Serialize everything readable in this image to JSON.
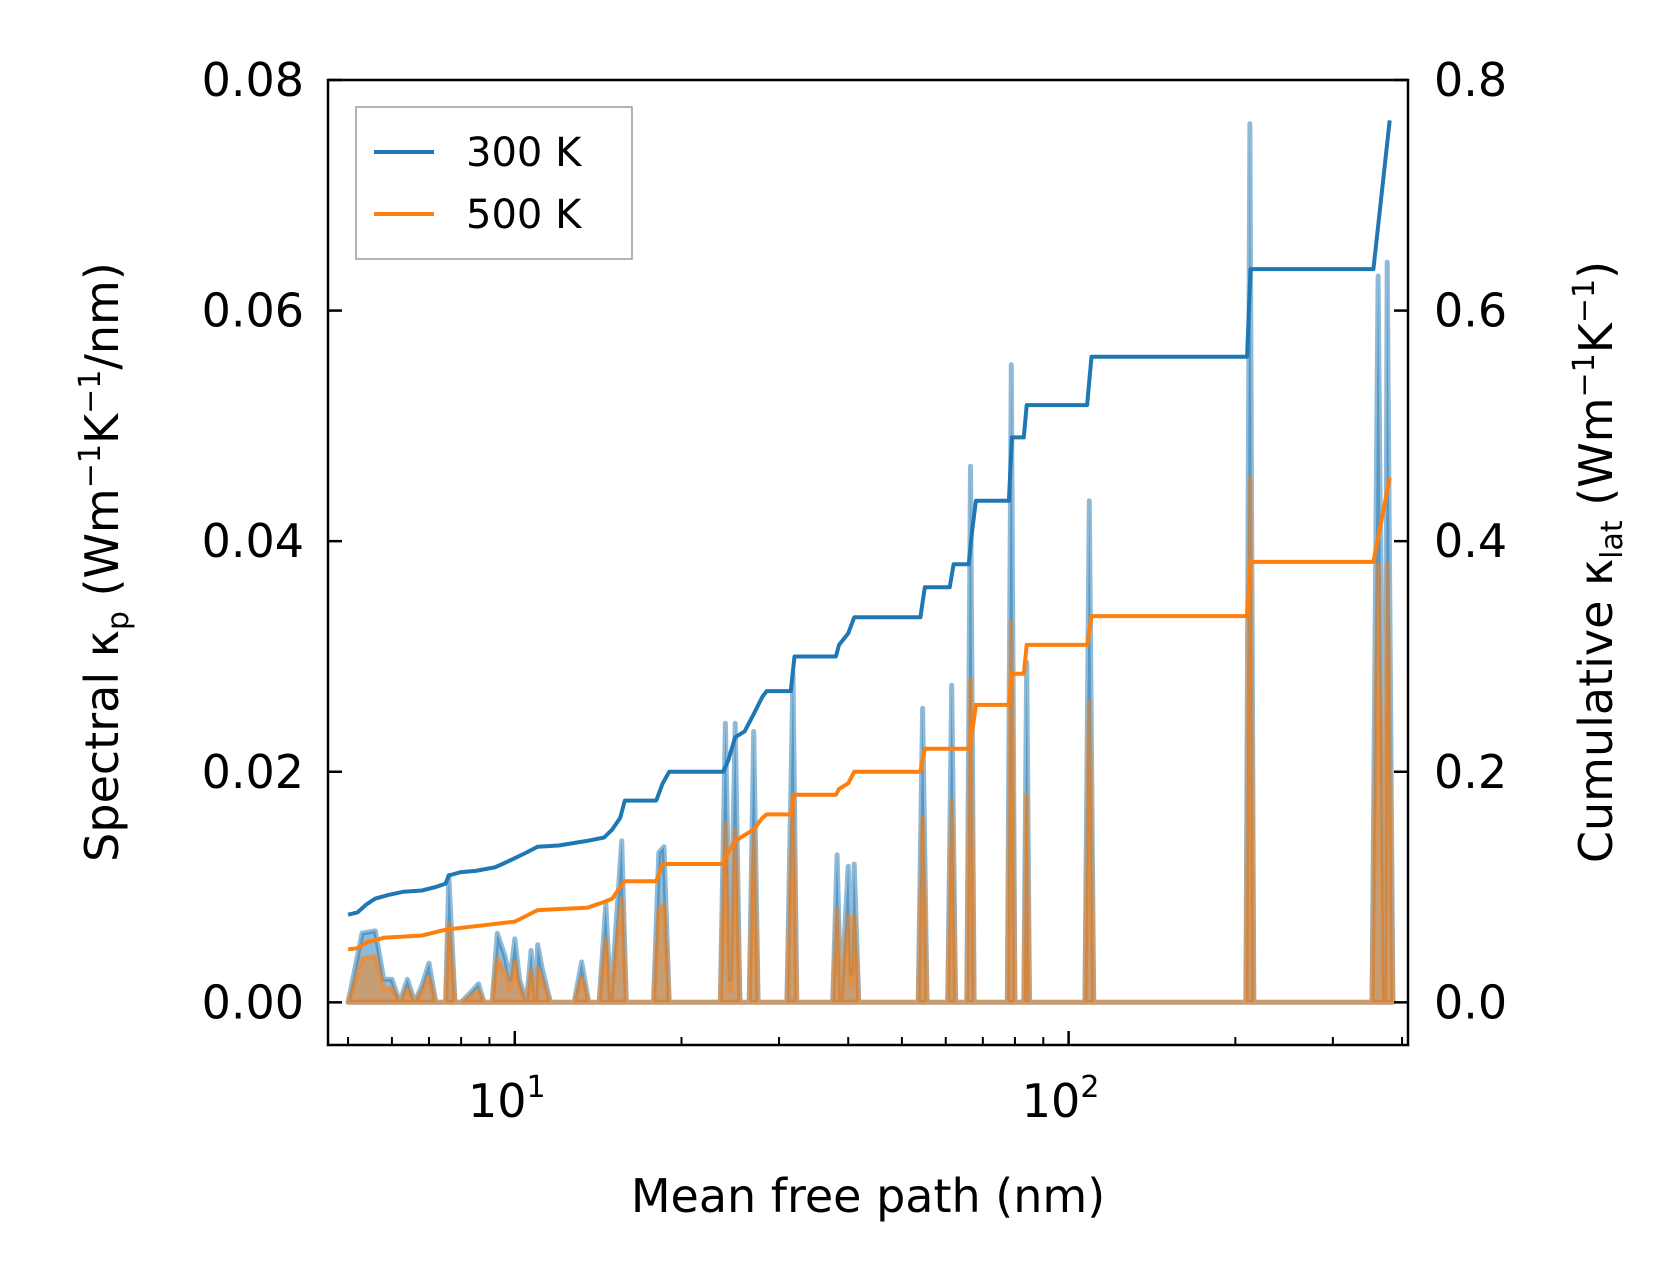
{
  "chart_data": {
    "type": "line",
    "xlabel": "Mean free path (nm)",
    "ylabel_left": {
      "pre": "Spectral κ",
      "sub": "p",
      "mid": " (Wm",
      "sup1": "−1",
      "k": "K",
      "sup2": "−1",
      "post": "/nm)"
    },
    "ylabel_right": {
      "pre": "Cumulative κ",
      "sub": "lat",
      "mid": " (Wm",
      "sup1": "−1",
      "k": "K",
      "sup2": "−1",
      "post": ")"
    },
    "x_scale": "log",
    "xlim": [
      4.6,
      410
    ],
    "ylim_left": [
      -0.0037,
      0.08
    ],
    "ylim_right": [
      -0.037,
      0.8
    ],
    "x_ticks": [
      {
        "base": "10",
        "exp": "1",
        "value": 10
      },
      {
        "base": "10",
        "exp": "2",
        "value": 100
      }
    ],
    "y_ticks_left": [
      {
        "label": "0.00",
        "value": 0.0
      },
      {
        "label": "0.02",
        "value": 0.02
      },
      {
        "label": "0.04",
        "value": 0.04
      },
      {
        "label": "0.06",
        "value": 0.06
      },
      {
        "label": "0.08",
        "value": 0.08
      }
    ],
    "y_ticks_right": [
      {
        "label": "0.0",
        "value": 0.0
      },
      {
        "label": "0.2",
        "value": 0.2
      },
      {
        "label": "0.4",
        "value": 0.4
      },
      {
        "label": "0.6",
        "value": 0.6
      },
      {
        "label": "0.8",
        "value": 0.8
      }
    ],
    "legend": {
      "location": "upper left",
      "entries": [
        {
          "label": "300 K",
          "color": "#1f77b4"
        },
        {
          "label": "500 K",
          "color": "#ff7f0e"
        }
      ]
    },
    "series": [
      {
        "name": "300 K",
        "color": "#1f77b4",
        "kind": "cumulative",
        "axis": "right",
        "points": [
          [
            5.0,
            0.076
          ],
          [
            5.2,
            0.078
          ],
          [
            5.4,
            0.085
          ],
          [
            5.6,
            0.09
          ],
          [
            5.9,
            0.093
          ],
          [
            6.3,
            0.096
          ],
          [
            6.8,
            0.097
          ],
          [
            7.2,
            0.1
          ],
          [
            7.5,
            0.103
          ],
          [
            7.6,
            0.11
          ],
          [
            8.0,
            0.113
          ],
          [
            8.5,
            0.114
          ],
          [
            9.2,
            0.117
          ],
          [
            9.5,
            0.12
          ],
          [
            10.0,
            0.125
          ],
          [
            10.5,
            0.13
          ],
          [
            11.0,
            0.135
          ],
          [
            12.0,
            0.136
          ],
          [
            13.5,
            0.14
          ],
          [
            14.5,
            0.143
          ],
          [
            15.0,
            0.15
          ],
          [
            15.5,
            0.16
          ],
          [
            15.8,
            0.175
          ],
          [
            18.0,
            0.175
          ],
          [
            18.5,
            0.19
          ],
          [
            19.0,
            0.2
          ],
          [
            23.8,
            0.2
          ],
          [
            24.3,
            0.21
          ],
          [
            25.0,
            0.23
          ],
          [
            26.0,
            0.235
          ],
          [
            27.0,
            0.25
          ],
          [
            28.0,
            0.265
          ],
          [
            28.5,
            0.27
          ],
          [
            31.5,
            0.27
          ],
          [
            32.0,
            0.3
          ],
          [
            38.0,
            0.3
          ],
          [
            38.5,
            0.31
          ],
          [
            40.0,
            0.32
          ],
          [
            41.0,
            0.334
          ],
          [
            54.0,
            0.334
          ],
          [
            55.0,
            0.36
          ],
          [
            61.0,
            0.36
          ],
          [
            62.0,
            0.38
          ],
          [
            66.0,
            0.38
          ],
          [
            67.0,
            0.41
          ],
          [
            68.0,
            0.435
          ],
          [
            78.0,
            0.435
          ],
          [
            79.0,
            0.49
          ],
          [
            83.0,
            0.49
          ],
          [
            84.0,
            0.518
          ],
          [
            108.0,
            0.518
          ],
          [
            110.0,
            0.56
          ],
          [
            210.0,
            0.56
          ],
          [
            213.0,
            0.636
          ],
          [
            355.0,
            0.636
          ],
          [
            380.0,
            0.765
          ]
        ]
      },
      {
        "name": "500 K",
        "color": "#ff7f0e",
        "kind": "cumulative",
        "axis": "right",
        "points": [
          [
            5.0,
            0.046
          ],
          [
            5.2,
            0.047
          ],
          [
            5.4,
            0.052
          ],
          [
            5.8,
            0.056
          ],
          [
            6.8,
            0.058
          ],
          [
            7.5,
            0.063
          ],
          [
            8.5,
            0.066
          ],
          [
            10.0,
            0.07
          ],
          [
            11.0,
            0.08
          ],
          [
            13.5,
            0.082
          ],
          [
            14.5,
            0.087
          ],
          [
            15.0,
            0.09
          ],
          [
            15.5,
            0.1
          ],
          [
            15.8,
            0.105
          ],
          [
            18.0,
            0.105
          ],
          [
            18.5,
            0.12
          ],
          [
            23.8,
            0.12
          ],
          [
            24.3,
            0.13
          ],
          [
            25.0,
            0.14
          ],
          [
            27.0,
            0.15
          ],
          [
            28.0,
            0.16
          ],
          [
            28.5,
            0.163
          ],
          [
            31.5,
            0.163
          ],
          [
            32.0,
            0.18
          ],
          [
            38.0,
            0.18
          ],
          [
            38.5,
            0.185
          ],
          [
            40.0,
            0.19
          ],
          [
            41.0,
            0.2
          ],
          [
            54.0,
            0.2
          ],
          [
            55.0,
            0.22
          ],
          [
            66.0,
            0.22
          ],
          [
            67.0,
            0.235
          ],
          [
            68.0,
            0.258
          ],
          [
            78.0,
            0.258
          ],
          [
            79.0,
            0.285
          ],
          [
            83.0,
            0.285
          ],
          [
            84.0,
            0.31
          ],
          [
            108.0,
            0.31
          ],
          [
            110.0,
            0.335
          ],
          [
            210.0,
            0.335
          ],
          [
            213.0,
            0.382
          ],
          [
            355.0,
            0.382
          ],
          [
            380.0,
            0.455
          ]
        ]
      },
      {
        "name": "300 K spectral",
        "color": "#1f77b4",
        "kind": "spectral",
        "axis": "left",
        "points": [
          [
            5.0,
            0
          ],
          [
            5.1,
            0.002
          ],
          [
            5.3,
            0.006
          ],
          [
            5.6,
            0.0062
          ],
          [
            5.8,
            0.002
          ],
          [
            6.0,
            0.002
          ],
          [
            6.2,
            0
          ],
          [
            6.4,
            0.002
          ],
          [
            6.6,
            0
          ],
          [
            6.8,
            0.0015
          ],
          [
            7.0,
            0.0034
          ],
          [
            7.2,
            0
          ],
          [
            7.5,
            0
          ],
          [
            7.6,
            0.011
          ],
          [
            7.8,
            0
          ],
          [
            8.0,
            0
          ],
          [
            8.3,
            0.0008
          ],
          [
            8.6,
            0.0016
          ],
          [
            8.8,
            0
          ],
          [
            9.1,
            0
          ],
          [
            9.3,
            0.006
          ],
          [
            9.6,
            0.004
          ],
          [
            9.8,
            0.002
          ],
          [
            10.0,
            0.0055
          ],
          [
            10.2,
            0.002
          ],
          [
            10.5,
            0
          ],
          [
            10.7,
            0.0045
          ],
          [
            10.9,
            0
          ],
          [
            11.0,
            0.005
          ],
          [
            11.2,
            0.003
          ],
          [
            11.6,
            0
          ],
          [
            12.8,
            0
          ],
          [
            13.2,
            0.0035
          ],
          [
            13.6,
            0
          ],
          [
            14.2,
            0
          ],
          [
            14.6,
            0.0085
          ],
          [
            14.9,
            0
          ],
          [
            15.2,
            0.006
          ],
          [
            15.6,
            0.014
          ],
          [
            15.9,
            0
          ],
          [
            17.8,
            0
          ],
          [
            18.2,
            0.013
          ],
          [
            18.6,
            0.0135
          ],
          [
            19.0,
            0
          ],
          [
            23.5,
            0
          ],
          [
            24.0,
            0.0242
          ],
          [
            24.5,
            0.002
          ],
          [
            25.0,
            0.0242
          ],
          [
            25.5,
            0
          ],
          [
            26.5,
            0
          ],
          [
            27.0,
            0.0235
          ],
          [
            27.5,
            0
          ],
          [
            31.0,
            0
          ],
          [
            31.8,
            0.0285
          ],
          [
            32.3,
            0
          ],
          [
            37.5,
            0
          ],
          [
            38.2,
            0.0128
          ],
          [
            38.8,
            0
          ],
          [
            40.0,
            0.0118
          ],
          [
            40.5,
            0.0025
          ],
          [
            41.0,
            0.012
          ],
          [
            41.8,
            0
          ],
          [
            53.5,
            0
          ],
          [
            54.5,
            0.0255
          ],
          [
            55.5,
            0
          ],
          [
            60.5,
            0
          ],
          [
            61.5,
            0.0275
          ],
          [
            62.5,
            0
          ],
          [
            65.5,
            0
          ],
          [
            66.5,
            0.0465
          ],
          [
            67.5,
            0
          ],
          [
            77.5,
            0
          ],
          [
            78.8,
            0.0553
          ],
          [
            80.0,
            0
          ],
          [
            83.0,
            0
          ],
          [
            84.0,
            0.0295
          ],
          [
            85.0,
            0
          ],
          [
            107.0,
            0
          ],
          [
            109.0,
            0.0435
          ],
          [
            111.0,
            0
          ],
          [
            209.0,
            0
          ],
          [
            212.5,
            0.0762
          ],
          [
            216.0,
            0
          ],
          [
            353.0,
            0
          ],
          [
            362.0,
            0.063
          ],
          [
            372.0,
            0
          ],
          [
            376.0,
            0.0642
          ],
          [
            385.0,
            0
          ]
        ]
      },
      {
        "name": "500 K spectral",
        "color": "#ff7f0e",
        "kind": "spectral",
        "axis": "left",
        "points": [
          [
            5.0,
            0
          ],
          [
            5.1,
            0.0012
          ],
          [
            5.3,
            0.0038
          ],
          [
            5.6,
            0.004
          ],
          [
            5.8,
            0.0012
          ],
          [
            6.0,
            0.0012
          ],
          [
            6.2,
            0
          ],
          [
            6.4,
            0.0012
          ],
          [
            6.6,
            0
          ],
          [
            6.8,
            0.001
          ],
          [
            7.0,
            0.0022
          ],
          [
            7.2,
            0
          ],
          [
            7.5,
            0
          ],
          [
            7.6,
            0.0068
          ],
          [
            7.8,
            0
          ],
          [
            8.0,
            0
          ],
          [
            8.3,
            0.0005
          ],
          [
            8.6,
            0.001
          ],
          [
            8.8,
            0
          ],
          [
            9.1,
            0
          ],
          [
            9.3,
            0.0038
          ],
          [
            9.6,
            0.0026
          ],
          [
            9.8,
            0.0012
          ],
          [
            10.0,
            0.0035
          ],
          [
            10.2,
            0.0012
          ],
          [
            10.5,
            0
          ],
          [
            10.7,
            0.0028
          ],
          [
            10.9,
            0
          ],
          [
            11.0,
            0.003
          ],
          [
            11.2,
            0.002
          ],
          [
            11.6,
            0
          ],
          [
            12.8,
            0
          ],
          [
            13.2,
            0.0022
          ],
          [
            13.6,
            0
          ],
          [
            14.2,
            0
          ],
          [
            14.6,
            0.0055
          ],
          [
            14.9,
            0
          ],
          [
            15.2,
            0.004
          ],
          [
            15.6,
            0.009
          ],
          [
            15.9,
            0
          ],
          [
            17.8,
            0
          ],
          [
            18.2,
            0.008
          ],
          [
            18.6,
            0.0085
          ],
          [
            19.0,
            0
          ],
          [
            23.5,
            0
          ],
          [
            24.0,
            0.0155
          ],
          [
            24.5,
            0.001
          ],
          [
            25.0,
            0.015
          ],
          [
            25.5,
            0
          ],
          [
            26.5,
            0
          ],
          [
            27.0,
            0.015
          ],
          [
            27.5,
            0
          ],
          [
            31.0,
            0
          ],
          [
            31.8,
            0.018
          ],
          [
            32.3,
            0
          ],
          [
            37.5,
            0
          ],
          [
            38.2,
            0.008
          ],
          [
            38.8,
            0
          ],
          [
            40.0,
            0.0075
          ],
          [
            40.5,
            0.0015
          ],
          [
            41.0,
            0.0075
          ],
          [
            41.8,
            0
          ],
          [
            53.5,
            0
          ],
          [
            54.5,
            0.016
          ],
          [
            55.5,
            0
          ],
          [
            60.5,
            0
          ],
          [
            61.5,
            0.0175
          ],
          [
            62.5,
            0
          ],
          [
            65.5,
            0
          ],
          [
            66.5,
            0.028
          ],
          [
            67.5,
            0
          ],
          [
            77.5,
            0
          ],
          [
            78.8,
            0.033
          ],
          [
            80.0,
            0
          ],
          [
            83.0,
            0
          ],
          [
            84.0,
            0.018
          ],
          [
            85.0,
            0
          ],
          [
            107.0,
            0
          ],
          [
            109.0,
            0.026
          ],
          [
            111.0,
            0
          ],
          [
            209.0,
            0
          ],
          [
            212.5,
            0.0455
          ],
          [
            216.0,
            0
          ],
          [
            353.0,
            0
          ],
          [
            362.0,
            0.038
          ],
          [
            372.0,
            0
          ],
          [
            376.0,
            0.038
          ],
          [
            385.0,
            0
          ]
        ]
      }
    ]
  }
}
